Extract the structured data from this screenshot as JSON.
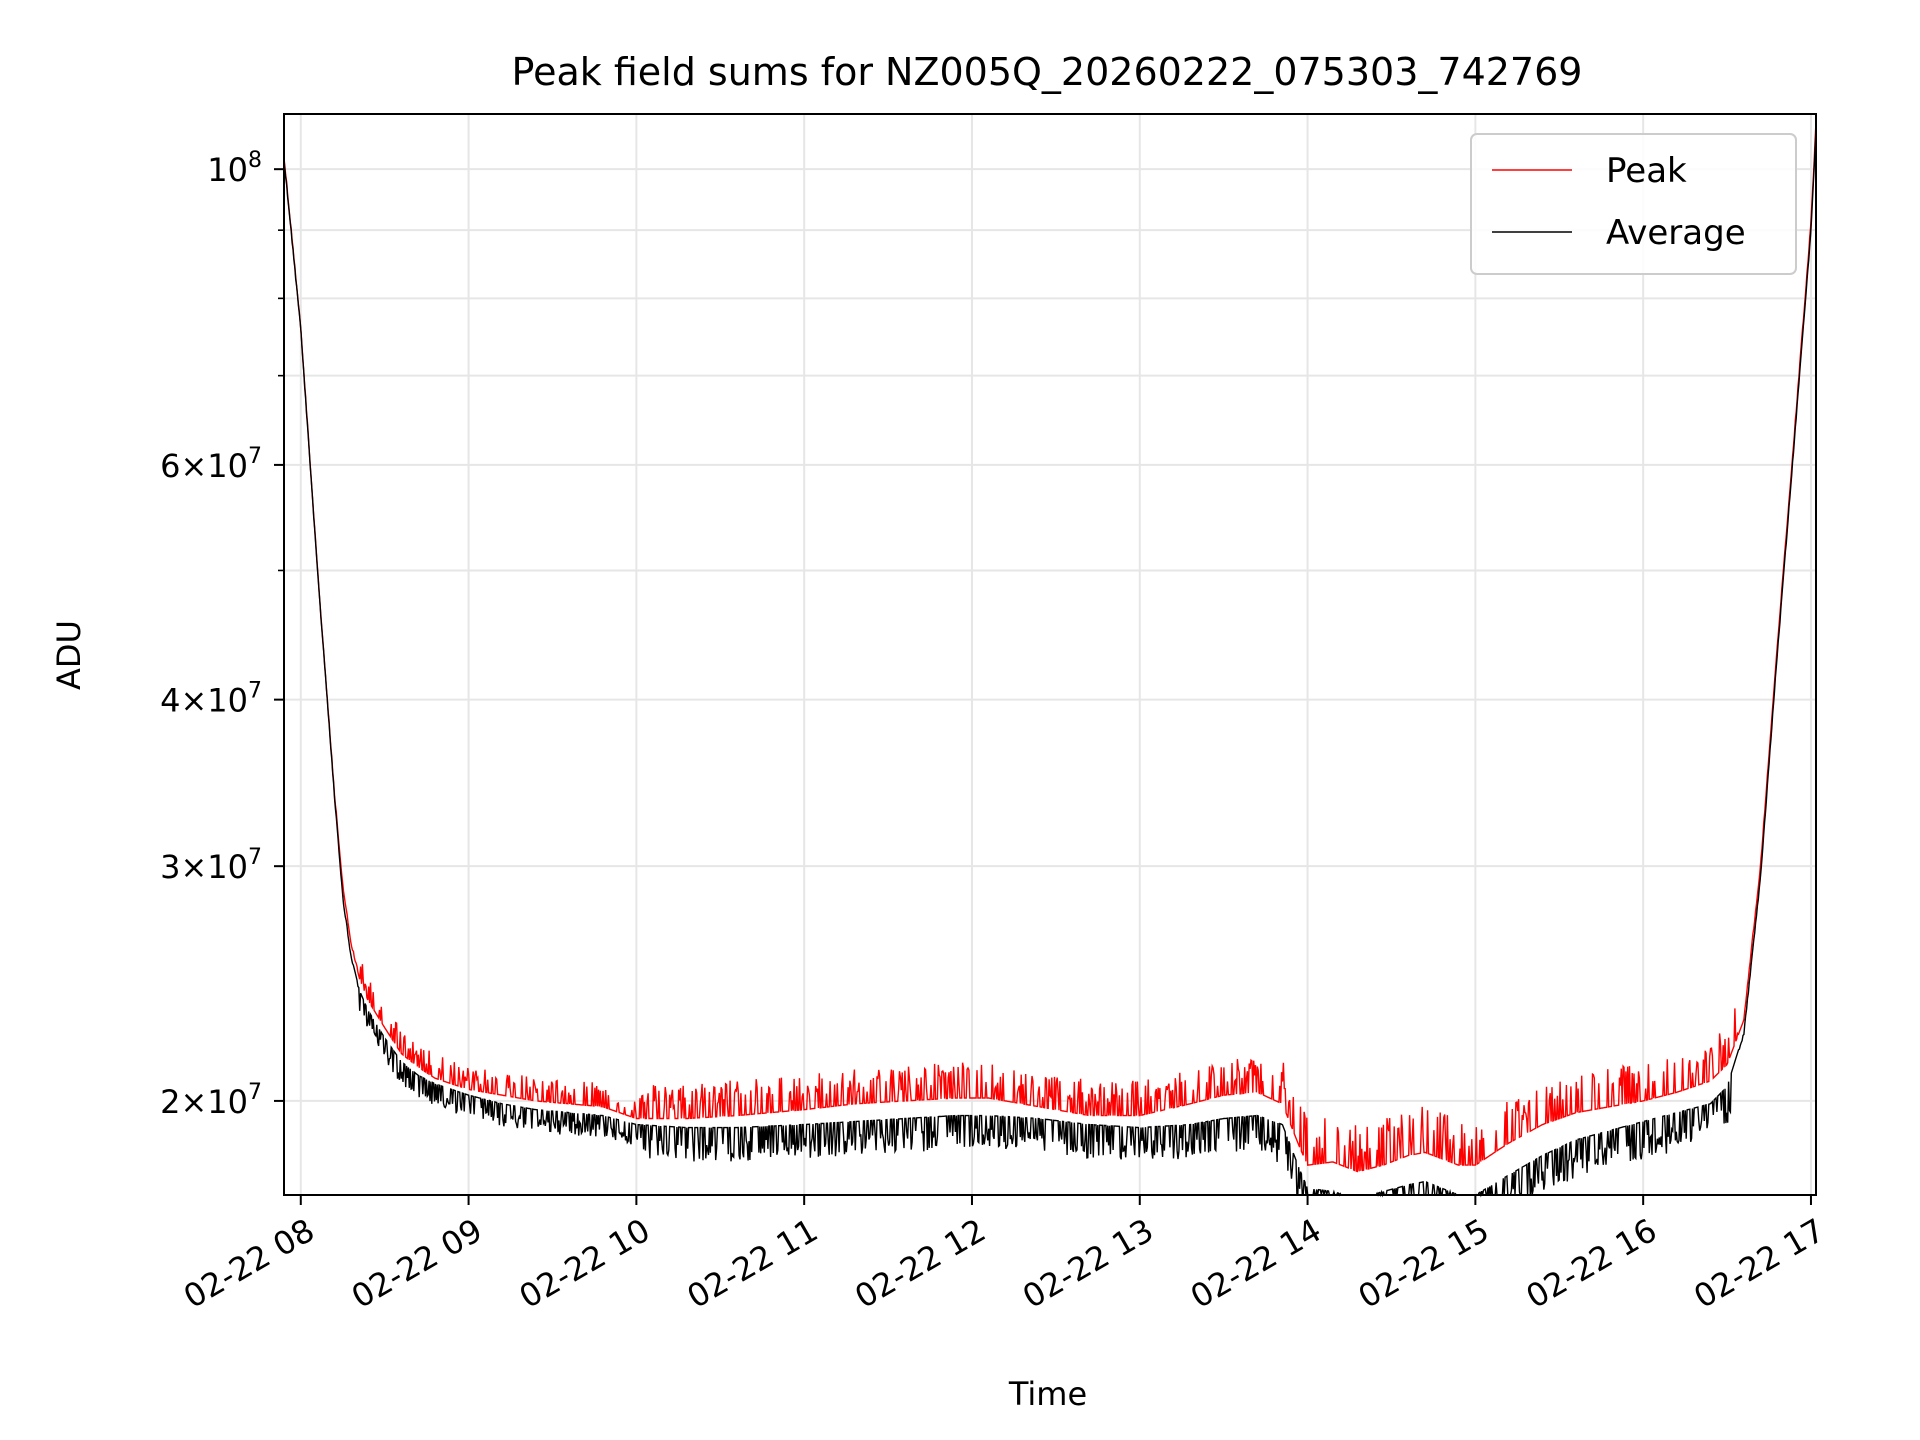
{
  "chart_data": {
    "type": "line",
    "title": "Peak field sums for NZ005Q_20260222_075303_742769",
    "xlabel": "Time",
    "ylabel": "ADU",
    "yscale": "log",
    "x_unit": "hours since 2026-02-22 00:00",
    "xlim": [
      7.9,
      17.03
    ],
    "ylim": [
      17000000,
      110000000
    ],
    "grid": true,
    "legend_position": "upper right",
    "x_ticks": [
      {
        "value": 8,
        "label": "02-22 08"
      },
      {
        "value": 9,
        "label": "02-22 09"
      },
      {
        "value": 10,
        "label": "02-22 10"
      },
      {
        "value": 11,
        "label": "02-22 11"
      },
      {
        "value": 12,
        "label": "02-22 12"
      },
      {
        "value": 13,
        "label": "02-22 13"
      },
      {
        "value": 14,
        "label": "02-22 14"
      },
      {
        "value": 15,
        "label": "02-22 15"
      },
      {
        "value": 16,
        "label": "02-22 16"
      },
      {
        "value": 17,
        "label": "02-22 17"
      }
    ],
    "y_ticks": [
      {
        "value": 20000000,
        "mant": "2×10",
        "exp": "7"
      },
      {
        "value": 30000000,
        "mant": "3×10",
        "exp": "7"
      },
      {
        "value": 40000000,
        "mant": "4×10",
        "exp": "7"
      },
      {
        "value": 60000000,
        "mant": "6×10",
        "exp": "7"
      },
      {
        "value": 100000000,
        "mant": "10",
        "exp": "8"
      }
    ],
    "y_minor_ticks": [
      50000000,
      70000000,
      80000000,
      90000000
    ],
    "series": [
      {
        "name": "Peak",
        "color": "#ff0000",
        "x": [
          7.9,
          8.0,
          8.1,
          8.2,
          8.25,
          8.3,
          8.35,
          8.4,
          8.5,
          8.6,
          8.7,
          8.8,
          9.0,
          9.2,
          9.4,
          9.6,
          9.8,
          10.0,
          10.3,
          10.6,
          11.0,
          11.3,
          11.6,
          11.9,
          12.1,
          12.4,
          12.7,
          13.0,
          13.3,
          13.5,
          13.7,
          13.85,
          13.95,
          14.0,
          14.15,
          14.3,
          14.45,
          14.6,
          14.7,
          14.8,
          14.9,
          15.0,
          15.2,
          15.4,
          15.6,
          15.8,
          16.0,
          16.2,
          16.4,
          16.5,
          16.6,
          16.7,
          16.8,
          16.9,
          17.0,
          17.03
        ],
        "y": [
          102000000,
          76000000,
          50000000,
          34000000,
          29000000,
          26200000,
          24700000,
          23800000,
          22700000,
          21700000,
          21200000,
          20800000,
          20400000,
          20200000,
          20000000,
          19900000,
          19800000,
          19400000,
          19400000,
          19500000,
          19700000,
          19900000,
          20000000,
          20100000,
          20100000,
          19800000,
          19500000,
          19500000,
          19900000,
          20200000,
          20300000,
          19900000,
          18500000,
          17900000,
          18000000,
          17700000,
          17900000,
          18200000,
          18300000,
          18100000,
          17900000,
          17900000,
          18600000,
          19200000,
          19600000,
          19800000,
          20000000,
          20300000,
          20700000,
          21300000,
          23000000,
          30000000,
          44000000,
          63000000,
          91000000,
          108000000
        ]
      },
      {
        "name": "Average",
        "color": "#000000",
        "x": [
          7.9,
          8.0,
          8.1,
          8.2,
          8.25,
          8.3,
          8.35,
          8.4,
          8.5,
          8.6,
          8.7,
          8.8,
          9.0,
          9.2,
          9.4,
          9.6,
          9.8,
          10.0,
          10.3,
          10.6,
          11.0,
          11.3,
          11.6,
          11.9,
          12.1,
          12.4,
          12.7,
          13.0,
          13.3,
          13.5,
          13.7,
          13.85,
          13.95,
          14.0,
          14.15,
          14.3,
          14.45,
          14.6,
          14.7,
          14.8,
          14.9,
          15.0,
          15.2,
          15.4,
          15.6,
          15.8,
          16.0,
          16.2,
          16.4,
          16.5,
          16.6,
          16.7,
          16.8,
          16.9,
          17.0,
          17.03
        ],
        "y": [
          102000000,
          76000000,
          50000000,
          34000000,
          28500000,
          25700000,
          24200000,
          23400000,
          22300000,
          21400000,
          20900000,
          20600000,
          20200000,
          19900000,
          19700000,
          19600000,
          19500000,
          19200000,
          19100000,
          19100000,
          19200000,
          19300000,
          19400000,
          19500000,
          19500000,
          19400000,
          19200000,
          19100000,
          19200000,
          19400000,
          19500000,
          19200000,
          17800000,
          17200000,
          17100000,
          16900000,
          17100000,
          17300000,
          17400000,
          17200000,
          17000000,
          17000000,
          17600000,
          18200000,
          18700000,
          19000000,
          19300000,
          19600000,
          19900000,
          20500000,
          22500000,
          29500000,
          43500000,
          62500000,
          90000000,
          107000000
        ]
      }
    ]
  }
}
